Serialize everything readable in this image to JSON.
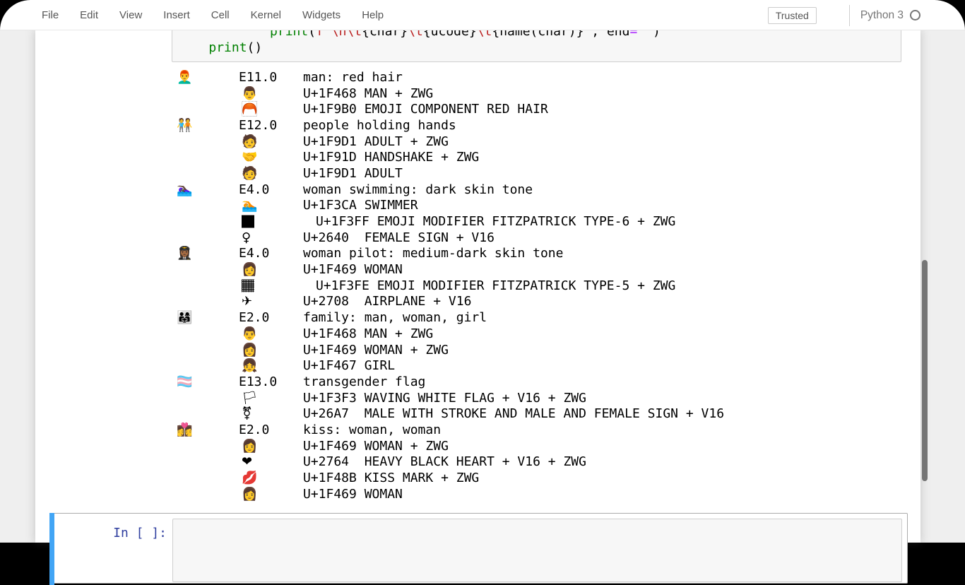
{
  "menubar": {
    "items": [
      "File",
      "Edit",
      "View",
      "Insert",
      "Cell",
      "Kernel",
      "Widgets",
      "Help"
    ],
    "trusted_label": "Trusted",
    "kernel_name": "Python 3",
    "kernel_status_icon": "idle-circle-outline"
  },
  "code_cell": {
    "lines": [
      [
        {
          "t": "            ",
          "c": ""
        },
        {
          "t": "print",
          "c": "builtin"
        },
        {
          "t": "(",
          "c": ""
        },
        {
          "t": "f'\\n\\t",
          "c": "str"
        },
        {
          "t": "{char}",
          "c": ""
        },
        {
          "t": "\\t",
          "c": "str"
        },
        {
          "t": "{ucode}",
          "c": ""
        },
        {
          "t": "\\t",
          "c": "str"
        },
        {
          "t": "{name(char)}",
          "c": ""
        },
        {
          "t": "'",
          "c": "str"
        },
        {
          "t": ", end",
          "c": ""
        },
        {
          "t": "=",
          "c": "op"
        },
        {
          "t": "''",
          "c": "str"
        },
        {
          "t": ")",
          "c": ""
        }
      ],
      [
        {
          "t": "    ",
          "c": ""
        },
        {
          "t": "print",
          "c": "builtin"
        },
        {
          "t": "()",
          "c": ""
        }
      ]
    ]
  },
  "output": {
    "groups": [
      {
        "emoji": "👨‍🦰",
        "version": "E11.0",
        "name": "man: red hair",
        "components": [
          {
            "emoji": "👨",
            "text": "U+1F468 MAN + ZWG"
          },
          {
            "emoji": "🦰",
            "text": "U+1F9B0 EMOJI COMPONENT RED HAIR"
          }
        ]
      },
      {
        "emoji": "🧑‍🤝‍🧑",
        "version": "E12.0",
        "name": "people holding hands",
        "components": [
          {
            "emoji": "🧑",
            "text": "U+1F9D1 ADULT + ZWG"
          },
          {
            "emoji": "🤝",
            "text": "U+1F91D HANDSHAKE + ZWG"
          },
          {
            "emoji": "🧑",
            "text": "U+1F9D1 ADULT"
          }
        ]
      },
      {
        "emoji": "🏊🏿‍♀️",
        "version": "E4.0",
        "name": "woman swimming: dark skin tone",
        "components": [
          {
            "emoji": "🏊",
            "text": "U+1F3CA SWIMMER"
          },
          {
            "emoji": "🏿",
            "text": "U+1F3FF EMOJI MODIFIER FITZPATRICK TYPE-6 + ZWG",
            "indent": true
          },
          {
            "emoji": "♀",
            "text": "U+2640  FEMALE SIGN + V16"
          }
        ]
      },
      {
        "emoji": "👩🏾‍✈️",
        "version": "E4.0",
        "name": "woman pilot: medium-dark skin tone",
        "components": [
          {
            "emoji": "👩",
            "text": "U+1F469 WOMAN"
          },
          {
            "emoji": "🏾",
            "text": "U+1F3FE EMOJI MODIFIER FITZPATRICK TYPE-5 + ZWG",
            "indent": true
          },
          {
            "emoji": "✈",
            "text": "U+2708  AIRPLANE + V16"
          }
        ]
      },
      {
        "emoji": "👨‍👩‍👧",
        "version": "E2.0",
        "name": "family: man, woman, girl",
        "components": [
          {
            "emoji": "👨",
            "text": "U+1F468 MAN + ZWG"
          },
          {
            "emoji": "👩",
            "text": "U+1F469 WOMAN + ZWG"
          },
          {
            "emoji": "👧",
            "text": "U+1F467 GIRL"
          }
        ]
      },
      {
        "emoji": "🏳️‍⚧️",
        "version": "E13.0",
        "name": "transgender flag",
        "components": [
          {
            "emoji": "🏳",
            "text": "U+1F3F3 WAVING WHITE FLAG + V16 + ZWG"
          },
          {
            "emoji": "⚧",
            "text": "U+26A7  MALE WITH STROKE AND MALE AND FEMALE SIGN + V16"
          }
        ]
      },
      {
        "emoji": "👩‍❤️‍💋‍👩",
        "version": "E2.0",
        "name": "kiss: woman, woman",
        "components": [
          {
            "emoji": "👩",
            "text": "U+1F469 WOMAN + ZWG"
          },
          {
            "emoji": "❤",
            "text": "U+2764  HEAVY BLACK HEART + V16 + ZWG"
          },
          {
            "emoji": "💋",
            "text": "U+1F48B KISS MARK + ZWG"
          },
          {
            "emoji": "👩",
            "text": "U+1F469 WOMAN"
          }
        ]
      }
    ]
  },
  "next_cell": {
    "prompt": "In [ ]:",
    "value": ""
  },
  "colors": {
    "selected_cell_accent": "#42A5F5",
    "prompt_blue": "#303F9F",
    "syntax_builtin_green": "#008000",
    "syntax_string_red": "#BA2121",
    "syntax_operator_purple": "#AA22FF",
    "page_background": "#efefef",
    "input_area_background": "#f7f7f7"
  }
}
